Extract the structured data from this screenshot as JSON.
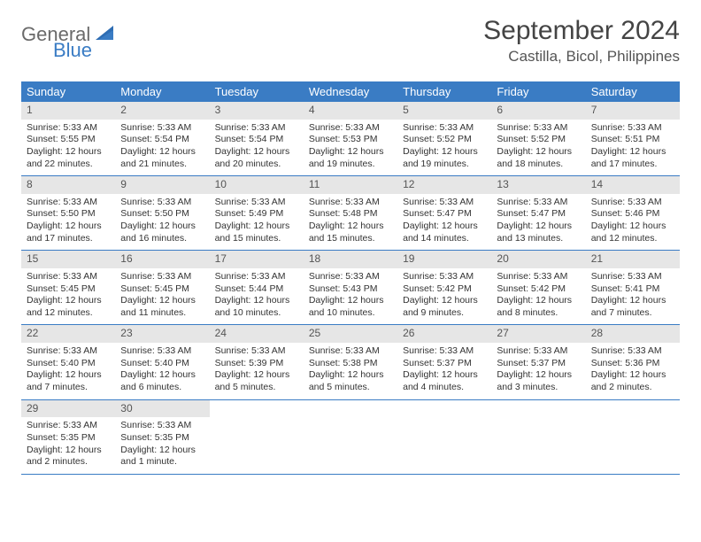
{
  "brand": {
    "main": "General",
    "sub": "Blue"
  },
  "title": "September 2024",
  "location": "Castilla, Bicol, Philippines",
  "colors": {
    "header_bar": "#3a7cc4",
    "daynum_band": "#e6e6e6",
    "row_border": "#3a7cc4",
    "background": "#ffffff",
    "text": "#333333",
    "logo_main": "#6a6a6a",
    "logo_sub": "#3a7cc4"
  },
  "typography": {
    "title_fontsize": 30,
    "location_fontsize": 17,
    "dayheader_fontsize": 13,
    "cell_fontsize": 10.5
  },
  "dayNames": [
    "Sunday",
    "Monday",
    "Tuesday",
    "Wednesday",
    "Thursday",
    "Friday",
    "Saturday"
  ],
  "weeks": [
    [
      {
        "day": "1",
        "sunrise": "Sunrise: 5:33 AM",
        "sunset": "Sunset: 5:55 PM",
        "daylight": "Daylight: 12 hours and 22 minutes."
      },
      {
        "day": "2",
        "sunrise": "Sunrise: 5:33 AM",
        "sunset": "Sunset: 5:54 PM",
        "daylight": "Daylight: 12 hours and 21 minutes."
      },
      {
        "day": "3",
        "sunrise": "Sunrise: 5:33 AM",
        "sunset": "Sunset: 5:54 PM",
        "daylight": "Daylight: 12 hours and 20 minutes."
      },
      {
        "day": "4",
        "sunrise": "Sunrise: 5:33 AM",
        "sunset": "Sunset: 5:53 PM",
        "daylight": "Daylight: 12 hours and 19 minutes."
      },
      {
        "day": "5",
        "sunrise": "Sunrise: 5:33 AM",
        "sunset": "Sunset: 5:52 PM",
        "daylight": "Daylight: 12 hours and 19 minutes."
      },
      {
        "day": "6",
        "sunrise": "Sunrise: 5:33 AM",
        "sunset": "Sunset: 5:52 PM",
        "daylight": "Daylight: 12 hours and 18 minutes."
      },
      {
        "day": "7",
        "sunrise": "Sunrise: 5:33 AM",
        "sunset": "Sunset: 5:51 PM",
        "daylight": "Daylight: 12 hours and 17 minutes."
      }
    ],
    [
      {
        "day": "8",
        "sunrise": "Sunrise: 5:33 AM",
        "sunset": "Sunset: 5:50 PM",
        "daylight": "Daylight: 12 hours and 17 minutes."
      },
      {
        "day": "9",
        "sunrise": "Sunrise: 5:33 AM",
        "sunset": "Sunset: 5:50 PM",
        "daylight": "Daylight: 12 hours and 16 minutes."
      },
      {
        "day": "10",
        "sunrise": "Sunrise: 5:33 AM",
        "sunset": "Sunset: 5:49 PM",
        "daylight": "Daylight: 12 hours and 15 minutes."
      },
      {
        "day": "11",
        "sunrise": "Sunrise: 5:33 AM",
        "sunset": "Sunset: 5:48 PM",
        "daylight": "Daylight: 12 hours and 15 minutes."
      },
      {
        "day": "12",
        "sunrise": "Sunrise: 5:33 AM",
        "sunset": "Sunset: 5:47 PM",
        "daylight": "Daylight: 12 hours and 14 minutes."
      },
      {
        "day": "13",
        "sunrise": "Sunrise: 5:33 AM",
        "sunset": "Sunset: 5:47 PM",
        "daylight": "Daylight: 12 hours and 13 minutes."
      },
      {
        "day": "14",
        "sunrise": "Sunrise: 5:33 AM",
        "sunset": "Sunset: 5:46 PM",
        "daylight": "Daylight: 12 hours and 12 minutes."
      }
    ],
    [
      {
        "day": "15",
        "sunrise": "Sunrise: 5:33 AM",
        "sunset": "Sunset: 5:45 PM",
        "daylight": "Daylight: 12 hours and 12 minutes."
      },
      {
        "day": "16",
        "sunrise": "Sunrise: 5:33 AM",
        "sunset": "Sunset: 5:45 PM",
        "daylight": "Daylight: 12 hours and 11 minutes."
      },
      {
        "day": "17",
        "sunrise": "Sunrise: 5:33 AM",
        "sunset": "Sunset: 5:44 PM",
        "daylight": "Daylight: 12 hours and 10 minutes."
      },
      {
        "day": "18",
        "sunrise": "Sunrise: 5:33 AM",
        "sunset": "Sunset: 5:43 PM",
        "daylight": "Daylight: 12 hours and 10 minutes."
      },
      {
        "day": "19",
        "sunrise": "Sunrise: 5:33 AM",
        "sunset": "Sunset: 5:42 PM",
        "daylight": "Daylight: 12 hours and 9 minutes."
      },
      {
        "day": "20",
        "sunrise": "Sunrise: 5:33 AM",
        "sunset": "Sunset: 5:42 PM",
        "daylight": "Daylight: 12 hours and 8 minutes."
      },
      {
        "day": "21",
        "sunrise": "Sunrise: 5:33 AM",
        "sunset": "Sunset: 5:41 PM",
        "daylight": "Daylight: 12 hours and 7 minutes."
      }
    ],
    [
      {
        "day": "22",
        "sunrise": "Sunrise: 5:33 AM",
        "sunset": "Sunset: 5:40 PM",
        "daylight": "Daylight: 12 hours and 7 minutes."
      },
      {
        "day": "23",
        "sunrise": "Sunrise: 5:33 AM",
        "sunset": "Sunset: 5:40 PM",
        "daylight": "Daylight: 12 hours and 6 minutes."
      },
      {
        "day": "24",
        "sunrise": "Sunrise: 5:33 AM",
        "sunset": "Sunset: 5:39 PM",
        "daylight": "Daylight: 12 hours and 5 minutes."
      },
      {
        "day": "25",
        "sunrise": "Sunrise: 5:33 AM",
        "sunset": "Sunset: 5:38 PM",
        "daylight": "Daylight: 12 hours and 5 minutes."
      },
      {
        "day": "26",
        "sunrise": "Sunrise: 5:33 AM",
        "sunset": "Sunset: 5:37 PM",
        "daylight": "Daylight: 12 hours and 4 minutes."
      },
      {
        "day": "27",
        "sunrise": "Sunrise: 5:33 AM",
        "sunset": "Sunset: 5:37 PM",
        "daylight": "Daylight: 12 hours and 3 minutes."
      },
      {
        "day": "28",
        "sunrise": "Sunrise: 5:33 AM",
        "sunset": "Sunset: 5:36 PM",
        "daylight": "Daylight: 12 hours and 2 minutes."
      }
    ],
    [
      {
        "day": "29",
        "sunrise": "Sunrise: 5:33 AM",
        "sunset": "Sunset: 5:35 PM",
        "daylight": "Daylight: 12 hours and 2 minutes."
      },
      {
        "day": "30",
        "sunrise": "Sunrise: 5:33 AM",
        "sunset": "Sunset: 5:35 PM",
        "daylight": "Daylight: 12 hours and 1 minute."
      },
      null,
      null,
      null,
      null,
      null
    ]
  ]
}
